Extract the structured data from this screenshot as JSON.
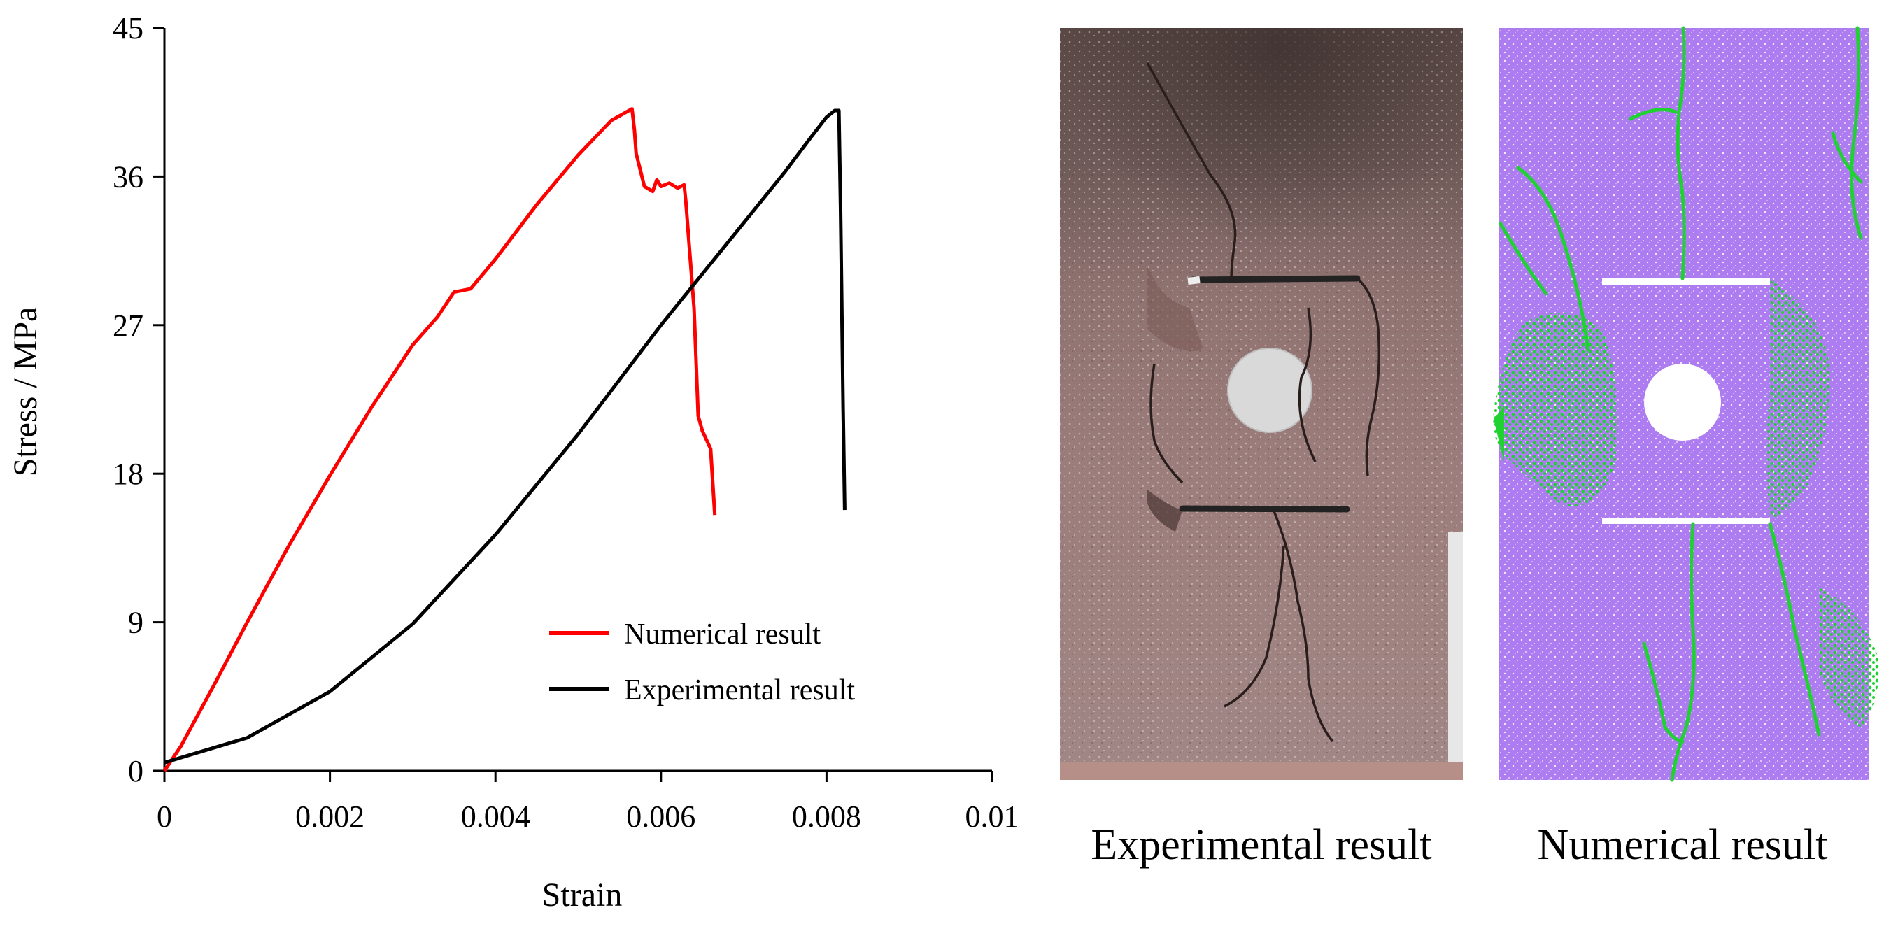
{
  "chart_data": {
    "type": "line",
    "xlabel": "Strain",
    "ylabel": "Stress / MPa",
    "xlim": [
      0,
      0.01
    ],
    "ylim": [
      0,
      45
    ],
    "x_ticks": [
      "0",
      "0.002",
      "0.004",
      "0.006",
      "0.008",
      "0.01"
    ],
    "y_ticks": [
      "0",
      "9",
      "18",
      "27",
      "36",
      "45"
    ],
    "x_tick_values": [
      0,
      0.002,
      0.004,
      0.006,
      0.008,
      0.01
    ],
    "y_tick_values": [
      0,
      9,
      18,
      27,
      36,
      45
    ],
    "grid": false,
    "legend_position": "bottom-right",
    "series": [
      {
        "name": "Numerical result",
        "color": "#ff0000",
        "points": [
          [
            0,
            0
          ],
          [
            0.0002,
            1.5
          ],
          [
            0.0006,
            5.2
          ],
          [
            0.001,
            9
          ],
          [
            0.0015,
            13.6
          ],
          [
            0.002,
            17.9
          ],
          [
            0.0025,
            22
          ],
          [
            0.003,
            25.8
          ],
          [
            0.0033,
            27.5
          ],
          [
            0.0035,
            29
          ],
          [
            0.0037,
            29.2
          ],
          [
            0.004,
            31
          ],
          [
            0.0045,
            34.3
          ],
          [
            0.005,
            37.3
          ],
          [
            0.0054,
            39.4
          ],
          [
            0.00565,
            40.1
          ],
          [
            0.00568,
            38.8
          ],
          [
            0.0057,
            37.4
          ],
          [
            0.0058,
            35.4
          ],
          [
            0.0059,
            35.1
          ],
          [
            0.00595,
            35.8
          ],
          [
            0.006,
            35.4
          ],
          [
            0.0061,
            35.6
          ],
          [
            0.0062,
            35.3
          ],
          [
            0.00628,
            35.5
          ],
          [
            0.0063,
            34.5
          ],
          [
            0.0064,
            28
          ],
          [
            0.00645,
            21.5
          ],
          [
            0.0065,
            20.6
          ],
          [
            0.0066,
            19.5
          ],
          [
            0.00665,
            15.5
          ]
        ]
      },
      {
        "name": "Experimental result",
        "color": "#000000",
        "points": [
          [
            0,
            0.5
          ],
          [
            0.001,
            2
          ],
          [
            0.002,
            4.8
          ],
          [
            0.003,
            8.9
          ],
          [
            0.004,
            14.3
          ],
          [
            0.005,
            20.4
          ],
          [
            0.006,
            27
          ],
          [
            0.007,
            33.2
          ],
          [
            0.0075,
            36.3
          ],
          [
            0.0078,
            38.3
          ],
          [
            0.008,
            39.6
          ],
          [
            0.0081,
            40
          ],
          [
            0.00815,
            40
          ],
          [
            0.00817,
            34
          ],
          [
            0.0082,
            22
          ],
          [
            0.00822,
            15.8
          ]
        ]
      }
    ]
  },
  "captions": {
    "experimental": "Experimental result",
    "numerical": "Numerical result"
  },
  "colors": {
    "rock_base": "#9d7f7c",
    "rock_dark": "#5b4a48",
    "particle_purple": "#b07ff0",
    "crack_green": "#19d42a"
  }
}
